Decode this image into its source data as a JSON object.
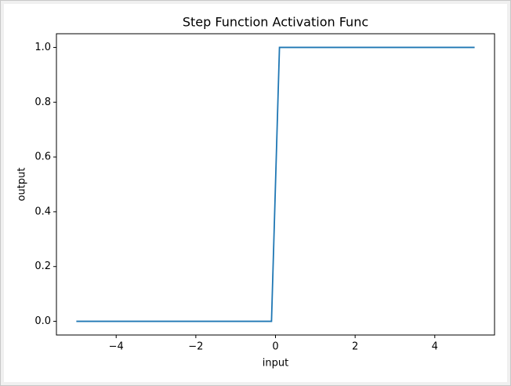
{
  "chart_data": {
    "type": "line",
    "title": "Step Function Activation Func",
    "x_label": "input",
    "y_label": "output",
    "x": [
      -5,
      -0.1,
      0.1,
      5
    ],
    "series": [
      {
        "color": "#1f77b4",
        "values": [
          0,
          0,
          1,
          1
        ]
      }
    ],
    "xlim": [
      -5.5,
      5.5
    ],
    "xticks": [
      {
        "value": -4,
        "label": "−4"
      },
      {
        "value": -2,
        "label": "−2"
      },
      0,
      2,
      4
    ],
    "ylim": [
      -0.05,
      1.05
    ],
    "yticks": [
      {
        "value": 0,
        "label": "0.0"
      },
      {
        "value": 0.2,
        "label": "0.2"
      },
      {
        "value": 0.4,
        "label": "0.4"
      },
      {
        "value": 0.6,
        "label": "0.6"
      },
      {
        "value": 0.8,
        "label": "0.8"
      },
      {
        "value": 1,
        "label": "1.0"
      }
    ],
    "grid": false
  }
}
